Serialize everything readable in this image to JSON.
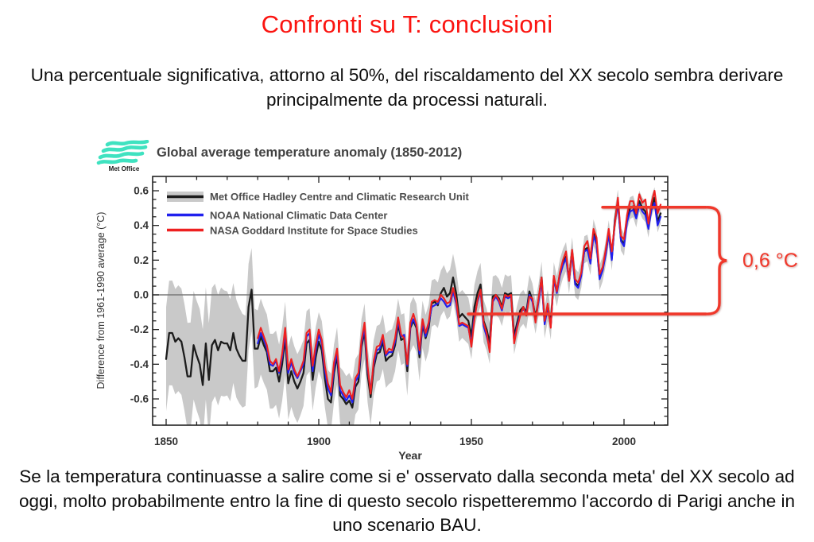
{
  "slide": {
    "title": "Confronti su T: conclusioni",
    "paragraph_top": "Una percentuale significativa, attorno al 50%, del riscaldamento del XX secolo sembra derivare principalmente da processi naturali.",
    "paragraph_bottom": "Se la temperatura continuasse a salire come si e' osservato dalla seconda meta' del XX secolo ad oggi, molto probabilmente entro la fine di questo secolo rispetteremmo l'accordo di Parigi anche in uno scenario BAU."
  },
  "logo": {
    "label": "Met Office",
    "wave_color": "#3fe2c0"
  },
  "colors": {
    "title_red": "#fb1410",
    "annotation_red": "#f0382b",
    "hadcrut_black": "#1c1c1c",
    "noaa_blue": "#2020ee",
    "nasa_red": "#ee2020",
    "band_gray": "#c9c9c9",
    "zero_line_gray": "#787878"
  },
  "chart_data": {
    "type": "line",
    "title": "Global average temperature anomaly (1850-2012)",
    "xlabel": "Year",
    "ylabel": "Difference from 1961-1990 average (°C)",
    "xlim": [
      1845.5,
      2014.5
    ],
    "ylim": [
      -0.75,
      0.68
    ],
    "x_ticks": [
      1850,
      1900,
      1950,
      2000
    ],
    "x_minor_step": 10,
    "y_ticks": [
      0.6,
      0.4,
      0.2,
      0.0,
      -0.2,
      -0.4,
      -0.6
    ],
    "y_tick_labels": [
      "0.6",
      "0.4",
      "0.2",
      "0.0",
      "-0.2",
      "-0.4",
      "-0.6"
    ],
    "y_minor_step": 0.05,
    "grid": false,
    "zero_line": true,
    "legend_position": "top-left",
    "series": [
      {
        "name": "Met Office Hadley Centre and Climatic Research Unit",
        "color": "#1c1c1c",
        "start_year": 1850,
        "values": [
          -0.37,
          -0.22,
          -0.22,
          -0.27,
          -0.25,
          -0.27,
          -0.36,
          -0.47,
          -0.47,
          -0.29,
          -0.35,
          -0.4,
          -0.52,
          -0.28,
          -0.49,
          -0.29,
          -0.26,
          -0.32,
          -0.27,
          -0.28,
          -0.28,
          -0.32,
          -0.22,
          -0.31,
          -0.35,
          -0.38,
          -0.38,
          -0.07,
          0.03,
          -0.31,
          -0.31,
          -0.24,
          -0.29,
          -0.33,
          -0.44,
          -0.44,
          -0.42,
          -0.5,
          -0.4,
          -0.25,
          -0.51,
          -0.44,
          -0.5,
          -0.54,
          -0.5,
          -0.45,
          -0.28,
          -0.26,
          -0.49,
          -0.36,
          -0.27,
          -0.32,
          -0.48,
          -0.6,
          -0.62,
          -0.45,
          -0.35,
          -0.58,
          -0.6,
          -0.63,
          -0.61,
          -0.65,
          -0.53,
          -0.5,
          -0.3,
          -0.21,
          -0.46,
          -0.59,
          -0.42,
          -0.34,
          -0.33,
          -0.27,
          -0.38,
          -0.36,
          -0.35,
          -0.29,
          -0.17,
          -0.26,
          -0.25,
          -0.44,
          -0.19,
          -0.15,
          -0.19,
          -0.36,
          -0.17,
          -0.25,
          -0.19,
          -0.05,
          -0.04,
          -0.06,
          0.01,
          0.04,
          -0.01,
          0.01,
          0.1,
          0.01,
          -0.13,
          -0.11,
          -0.13,
          -0.15,
          -0.24,
          -0.07,
          0.01,
          0.06,
          -0.15,
          -0.2,
          -0.28,
          -0.01,
          0.0,
          -0.02,
          -0.07,
          0.01,
          0.0,
          0.01,
          -0.24,
          -0.16,
          -0.09,
          -0.07,
          -0.1,
          0.02,
          -0.03,
          -0.13,
          -0.03,
          0.1,
          -0.16,
          -0.06,
          -0.17,
          0.1,
          0.02,
          0.12,
          0.18,
          0.22,
          0.09,
          0.25,
          0.07,
          0.05,
          0.12,
          0.26,
          0.27,
          0.19,
          0.36,
          0.3,
          0.1,
          0.15,
          0.24,
          0.36,
          0.21,
          0.43,
          0.54,
          0.32,
          0.29,
          0.44,
          0.5,
          0.51,
          0.45,
          0.54,
          0.5,
          0.48,
          0.39,
          0.51,
          0.56,
          0.42,
          0.47
        ]
      },
      {
        "name": "NOAA National Climatic Data Center",
        "color": "#2020ee",
        "start_year": 1880,
        "values": [
          -0.28,
          -0.22,
          -0.26,
          -0.31,
          -0.4,
          -0.41,
          -0.38,
          -0.45,
          -0.36,
          -0.22,
          -0.45,
          -0.39,
          -0.45,
          -0.48,
          -0.44,
          -0.4,
          -0.24,
          -0.22,
          -0.44,
          -0.32,
          -0.23,
          -0.28,
          -0.44,
          -0.54,
          -0.58,
          -0.42,
          -0.33,
          -0.55,
          -0.58,
          -0.61,
          -0.58,
          -0.62,
          -0.5,
          -0.47,
          -0.28,
          -0.19,
          -0.43,
          -0.55,
          -0.4,
          -0.32,
          -0.31,
          -0.25,
          -0.35,
          -0.33,
          -0.33,
          -0.27,
          -0.15,
          -0.24,
          -0.23,
          -0.41,
          -0.18,
          -0.14,
          -0.18,
          -0.34,
          -0.16,
          -0.24,
          -0.17,
          -0.07,
          -0.06,
          -0.05,
          -0.02,
          -0.04,
          -0.07,
          -0.06,
          0.02,
          -0.05,
          -0.18,
          -0.17,
          -0.18,
          -0.19,
          -0.28,
          -0.12,
          -0.04,
          0.02,
          -0.18,
          -0.24,
          -0.31,
          -0.04,
          -0.01,
          -0.04,
          -0.09,
          -0.01,
          -0.02,
          -0.01,
          -0.27,
          -0.18,
          -0.11,
          -0.08,
          -0.11,
          0.0,
          -0.04,
          -0.15,
          -0.04,
          0.08,
          -0.17,
          -0.07,
          -0.18,
          0.09,
          0.01,
          0.11,
          0.17,
          0.21,
          0.08,
          0.24,
          0.06,
          0.04,
          0.11,
          0.25,
          0.26,
          0.18,
          0.34,
          0.29,
          0.09,
          0.14,
          0.23,
          0.35,
          0.2,
          0.42,
          0.52,
          0.31,
          0.28,
          0.42,
          0.48,
          0.49,
          0.44,
          0.52,
          0.48,
          0.46,
          0.38,
          0.49,
          0.53,
          0.4,
          0.45
        ]
      },
      {
        "name": "NASA Goddard Institute for Space Studies",
        "color": "#ee2020",
        "start_year": 1880,
        "values": [
          -0.25,
          -0.19,
          -0.24,
          -0.29,
          -0.38,
          -0.4,
          -0.37,
          -0.44,
          -0.34,
          -0.19,
          -0.43,
          -0.37,
          -0.43,
          -0.47,
          -0.43,
          -0.38,
          -0.22,
          -0.2,
          -0.41,
          -0.29,
          -0.2,
          -0.26,
          -0.41,
          -0.51,
          -0.56,
          -0.39,
          -0.31,
          -0.52,
          -0.56,
          -0.59,
          -0.55,
          -0.6,
          -0.48,
          -0.45,
          -0.26,
          -0.16,
          -0.41,
          -0.57,
          -0.38,
          -0.3,
          -0.29,
          -0.23,
          -0.34,
          -0.31,
          -0.32,
          -0.25,
          -0.13,
          -0.23,
          -0.25,
          -0.4,
          -0.16,
          -0.11,
          -0.17,
          -0.32,
          -0.14,
          -0.22,
          -0.16,
          -0.04,
          -0.03,
          -0.04,
          0.0,
          -0.02,
          -0.05,
          -0.04,
          0.04,
          -0.03,
          -0.17,
          -0.16,
          -0.17,
          -0.18,
          -0.3,
          -0.14,
          -0.03,
          0.03,
          -0.16,
          -0.22,
          -0.33,
          -0.03,
          0.0,
          -0.03,
          -0.08,
          0.0,
          -0.01,
          0.0,
          -0.28,
          -0.19,
          -0.12,
          -0.07,
          -0.12,
          -0.01,
          -0.02,
          -0.16,
          -0.02,
          0.1,
          -0.15,
          -0.05,
          -0.19,
          0.11,
          0.02,
          0.13,
          0.2,
          0.25,
          0.08,
          0.26,
          0.09,
          0.07,
          0.13,
          0.28,
          0.31,
          0.21,
          0.38,
          0.33,
          0.12,
          0.16,
          0.26,
          0.38,
          0.25,
          0.41,
          0.56,
          0.34,
          0.32,
          0.46,
          0.54,
          0.54,
          0.47,
          0.58,
          0.53,
          0.55,
          0.41,
          0.53,
          0.6,
          0.47,
          0.52
        ]
      }
    ],
    "uncertainty_band": {
      "applies_to": "Met Office Hadley Centre and Climatic Research Unit",
      "color": "#c9c9c9",
      "half_width_points": [
        [
          1850,
          0.3
        ],
        [
          1858,
          0.31
        ],
        [
          1865,
          0.33
        ],
        [
          1875,
          0.27
        ],
        [
          1880,
          0.22
        ],
        [
          1890,
          0.21
        ],
        [
          1900,
          0.17
        ],
        [
          1910,
          0.16
        ],
        [
          1920,
          0.16
        ],
        [
          1930,
          0.14
        ],
        [
          1940,
          0.13
        ],
        [
          1946,
          0.14
        ],
        [
          1955,
          0.12
        ],
        [
          1965,
          0.1
        ],
        [
          1975,
          0.09
        ],
        [
          1985,
          0.08
        ],
        [
          1995,
          0.07
        ],
        [
          2005,
          0.06
        ],
        [
          2012,
          0.06
        ]
      ]
    },
    "annotation": {
      "label": "0,6 °C",
      "color": "#f0382b",
      "upper_line": {
        "value": 0.505,
        "from_year": 1993
      },
      "lower_line": {
        "value": -0.11,
        "from_year": 1949
      }
    }
  }
}
